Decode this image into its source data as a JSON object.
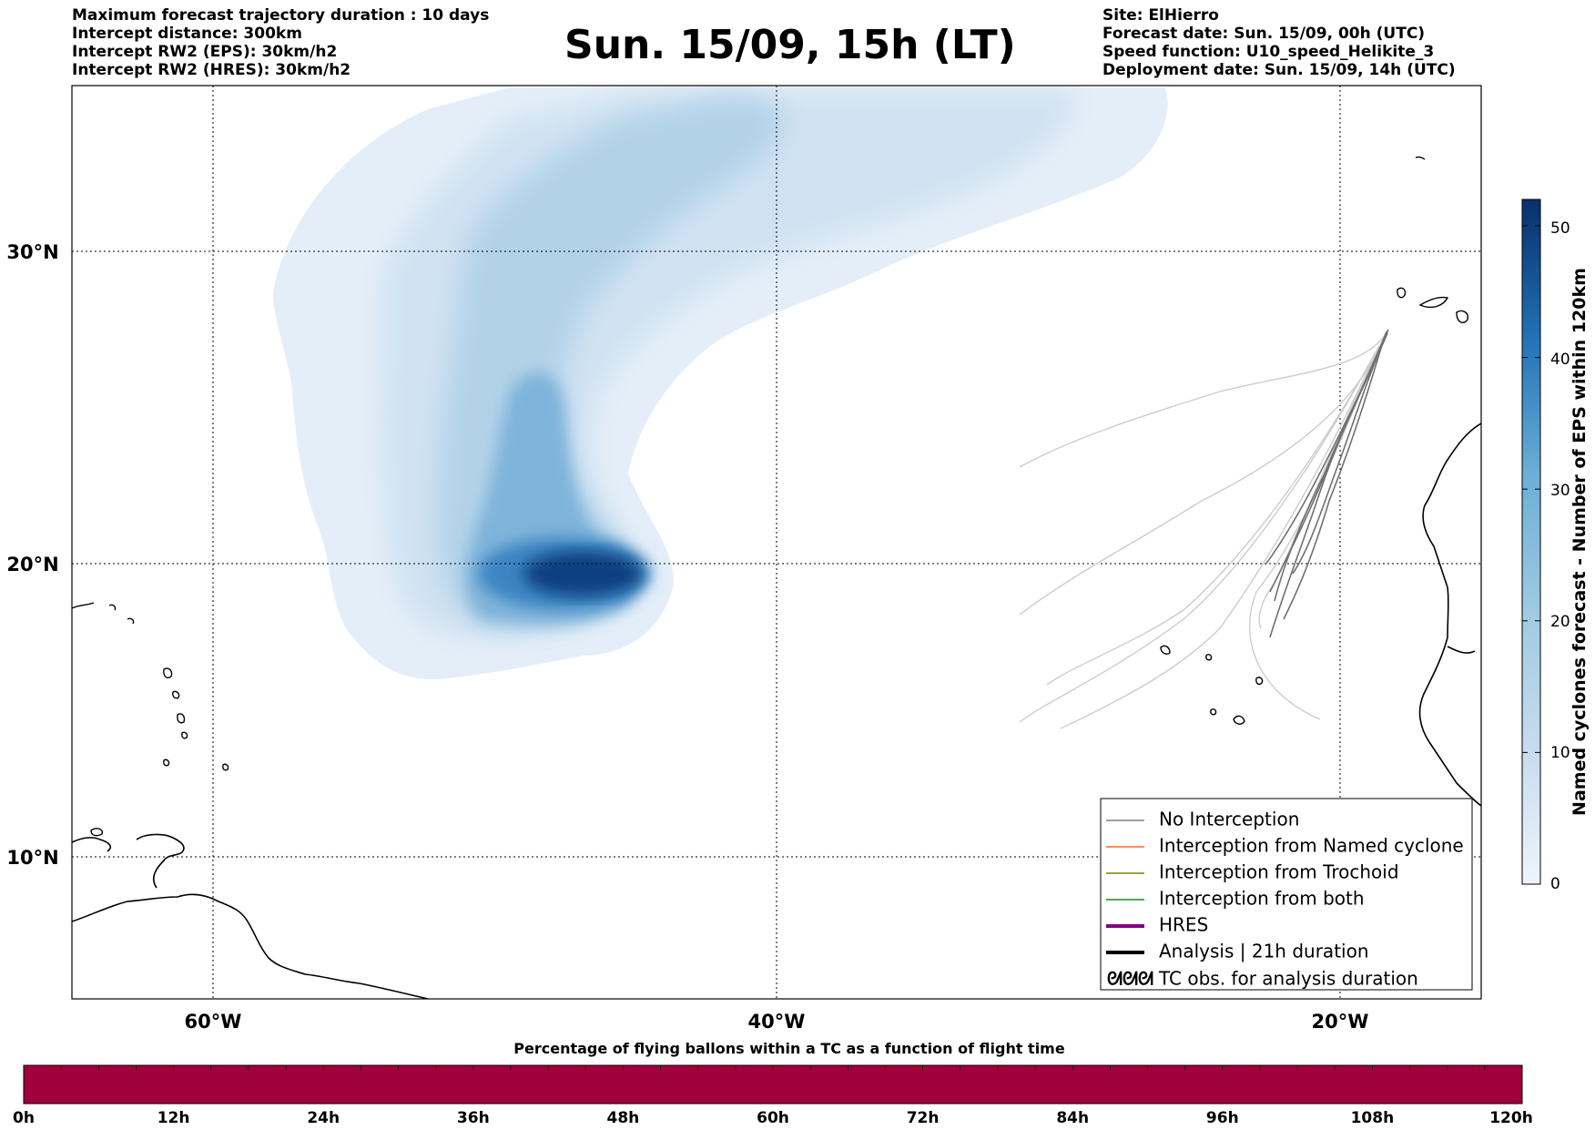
{
  "header_left": {
    "line1": "Maximum forecast trajectory duration : 10 days",
    "line2": "Intercept distance: 300km",
    "line3": "Intercept RW2 (EPS):  30km/h2",
    "line4": "Intercept RW2 (HRES): 30km/h2"
  },
  "title": "Sun. 15/09, 15h (LT)",
  "header_right": {
    "line1": "Site: ElHierro",
    "line2": "Forecast date: Sun. 15/09, 00h (UTC)",
    "line3": "Speed function: U10_speed_Helikite_3",
    "line4": "Deployment date: Sun. 15/09, 14h (UTC)"
  },
  "map": {
    "lat_labels": [
      "30°N",
      "20°N",
      "10°N"
    ],
    "lon_labels": [
      "60°W",
      "40°W",
      "20°W"
    ]
  },
  "legend": {
    "items": [
      {
        "label": "No Interception",
        "color": "#808080",
        "width": 1.5
      },
      {
        "label": "Interception from Named cyclone",
        "color": "#ff6a26",
        "width": 1.5
      },
      {
        "label": "Interception from Trochoid",
        "color": "#808000",
        "width": 1.5
      },
      {
        "label": "Interception from both",
        "color": "#1a8c1a",
        "width": 1.5
      },
      {
        "label": "HRES",
        "color": "#800080",
        "width": 4
      },
      {
        "label": "Analysis | 21h duration",
        "color": "#000000",
        "width": 4
      }
    ],
    "tc_symbol": "ᘛᘛᘛ",
    "tc_label": "TC obs. for analysis duration"
  },
  "colorbar": {
    "label": "Named cyclones forecast - Number of EPS within 120km",
    "ticks": [
      "0",
      "10",
      "20",
      "30",
      "40",
      "50"
    ]
  },
  "bottom_bar": {
    "title": "Percentage of flying ballons within a TC as a function of flight time",
    "fill_color": "#a0003c",
    "value_percent": 100,
    "ticks": [
      "0h",
      "12h",
      "24h",
      "36h",
      "48h",
      "60h",
      "72h",
      "84h",
      "96h",
      "108h",
      "120h"
    ]
  }
}
